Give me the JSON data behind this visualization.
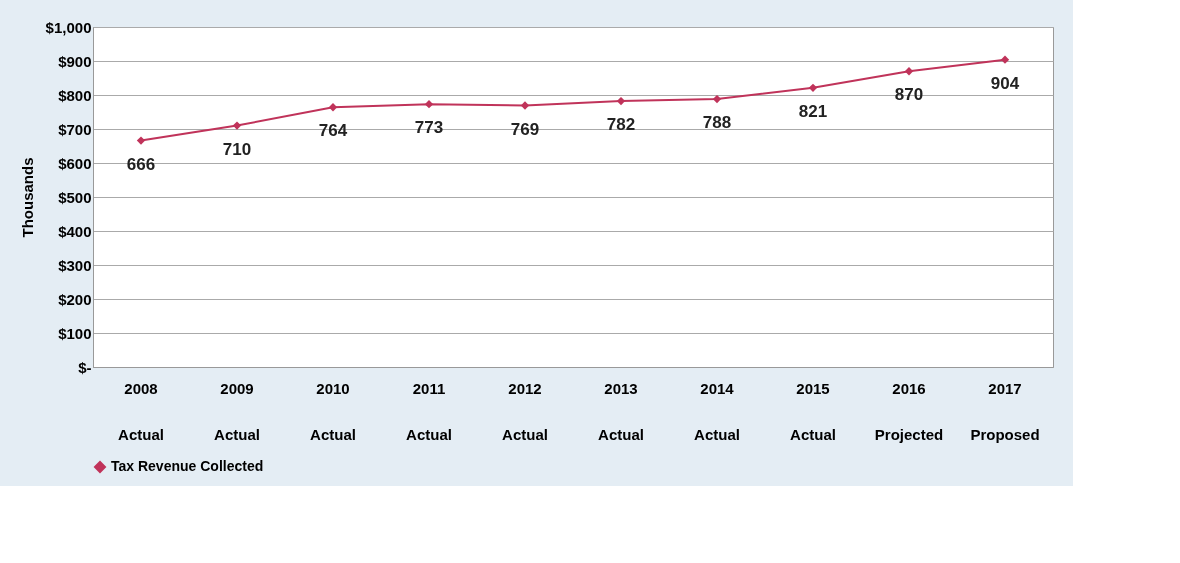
{
  "chart_data": {
    "type": "line",
    "ylabel": "Thousands",
    "categories": [
      "2008\nActual",
      "2009\nActual",
      "2010\nActual",
      "2011\nActual",
      "2012\nActual",
      "2013\nActual",
      "2014\nActual",
      "2015\nActual",
      "2016\nProjected",
      "2017\nProposed"
    ],
    "series": [
      {
        "name": "Tax Revenue Collected",
        "color": "#c0335a",
        "values": [
          666,
          710,
          764,
          773,
          769,
          782,
          788,
          821,
          870,
          904
        ]
      }
    ],
    "ylim": [
      0,
      1000
    ],
    "yticks": [
      {
        "value": 0,
        "label": "$-"
      },
      {
        "value": 100,
        "label": "$100"
      },
      {
        "value": 200,
        "label": "$200"
      },
      {
        "value": 300,
        "label": "$300"
      },
      {
        "value": 400,
        "label": "$400"
      },
      {
        "value": 500,
        "label": "$500"
      },
      {
        "value": 600,
        "label": "$600"
      },
      {
        "value": 700,
        "label": "$700"
      },
      {
        "value": 800,
        "label": "$800"
      },
      {
        "value": 900,
        "label": "$900"
      },
      {
        "value": 1000,
        "label": "$1,000"
      }
    ],
    "grid": "y",
    "legend": "bottom",
    "marker": "diamond",
    "line_style": "solid",
    "data_labels": true
  }
}
